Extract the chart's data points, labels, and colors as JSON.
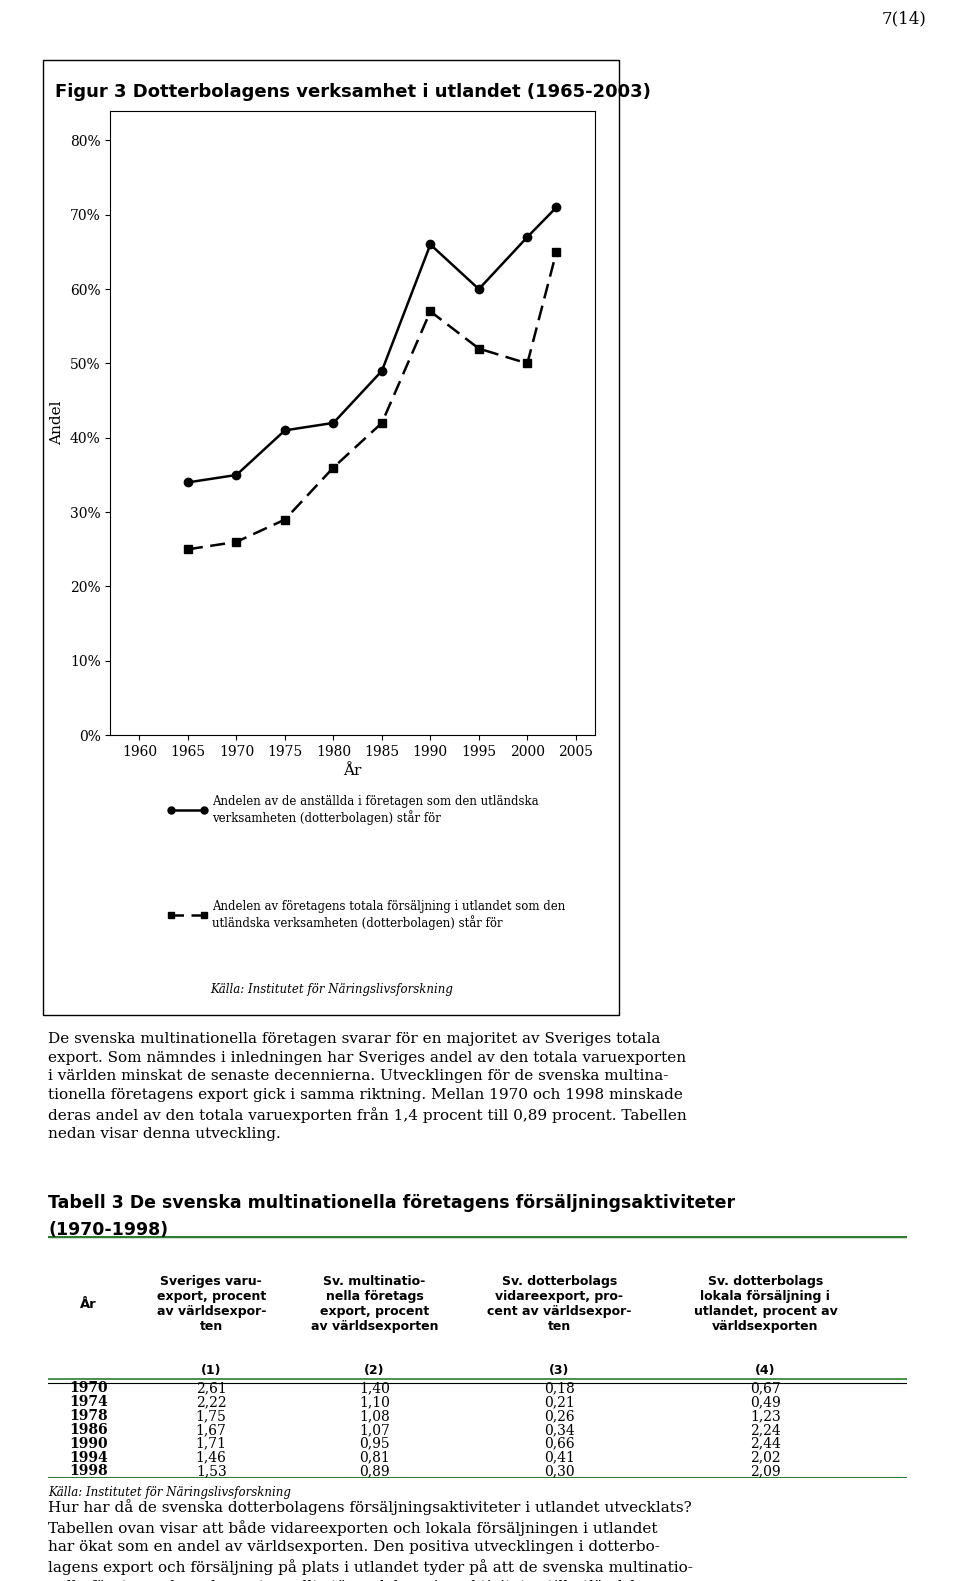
{
  "title": "Figur 3 Dotterbolagens verksamhet i utlandet (1965-2003)",
  "ylabel": "Andel",
  "xlabel": "År",
  "page_number": "7(14)",
  "yticks": [
    0,
    10,
    20,
    30,
    40,
    50,
    60,
    70,
    80
  ],
  "ytick_labels": [
    "0%",
    "10%",
    "20%",
    "30%",
    "40%",
    "50%",
    "60%",
    "70%",
    "80%"
  ],
  "xticks": [
    1960,
    1965,
    1970,
    1975,
    1980,
    1985,
    1990,
    1995,
    2000,
    2005
  ],
  "xlim": [
    1957,
    2007
  ],
  "ylim": [
    0,
    84
  ],
  "line1_x": [
    1965,
    1970,
    1975,
    1980,
    1985,
    1990,
    1995,
    2000,
    2003
  ],
  "line1_y": [
    34,
    35,
    41,
    42,
    49,
    66,
    60,
    67,
    71
  ],
  "line2_x": [
    1965,
    1970,
    1975,
    1980,
    1985,
    1990,
    1995,
    2000,
    2003
  ],
  "line2_y": [
    25,
    26,
    29,
    36,
    42,
    57,
    52,
    50,
    65
  ],
  "legend1": "Andelen av de anställda i företagen som den utländska\nverksamheten (dotterbolagen) står för",
  "legend2": "Andelen av företagens totala försäljning i utlandet som den\nutländska verksamheten (dotterbolagen) står för",
  "source": "Källa: Institutet för Näringslivsforskning",
  "background_color": "#ffffff",
  "paragraph1": "De svenska multinationella företagen svarar för en majoritet av Sveriges totala\nexport. Som nämndes i inledningen har Sveriges andel av den totala varuexporten\ni världen minskat de senaste decennierna. Utvecklingen för de svenska multina-\ntionella företagens export gick i samma riktning. Mellan 1970 och 1998 minskade\nderas andel av den totala varuexporten från 1,4 procent till 0,89 procent. Tabellen\nnedan visar denna utveckling.",
  "table_title_line1": "Tabell 3 De svenska multinationella företagens försäljningsaktiviteter",
  "table_title_line2": "(1970-1998)",
  "col0_header": "År",
  "col1_header": "Sveriges varu-\nexport, procent\nav världsexpor-\nten",
  "col2_header": "Sv. multinatio-\nnella företags\nexport, procent\nav världsexporten",
  "col3_header": "Sv. dotterbolags\nvidareexport, pro-\ncent av världsexpor-\nten",
  "col4_header": "Sv. dotterbolags\nlokala försäljning i\nutlandet, procent av\nvärldsexporten",
  "col_num_labels": [
    "(1)",
    "(2)",
    "(3)",
    "(4)"
  ],
  "table_rows": [
    [
      "1970",
      "2,61",
      "1,40",
      "0,18",
      "0,67"
    ],
    [
      "1974",
      "2,22",
      "1,10",
      "0,21",
      "0,49"
    ],
    [
      "1978",
      "1,75",
      "1,08",
      "0,26",
      "1,23"
    ],
    [
      "1986",
      "1,67",
      "1,07",
      "0,34",
      "2,24"
    ],
    [
      "1990",
      "1,71",
      "0,95",
      "0,66",
      "2,44"
    ],
    [
      "1994",
      "1,46",
      "0,81",
      "0,41",
      "2,02"
    ],
    [
      "1998",
      "1,53",
      "0,89",
      "0,30",
      "2,09"
    ]
  ],
  "table_source": "Källa: Institutet för Näringslivsforskning",
  "paragraph2": "Hur har då de svenska dotterbolagens försäljningsaktiviteter i utlandet utvecklats?\nTabellen ovan visar att både vidareexporten och lokala försäljningen i utlandet\nhar ökat som en andel av världsexporten. Den positiva utvecklingen i dotterbo-\nlagens export och försäljning på plats i utlandet tyder på att de svenska multinatio-\nnella företagen har placerat en allt större del av sina aktiviteter till utländska",
  "green_color": "#2e7d32"
}
